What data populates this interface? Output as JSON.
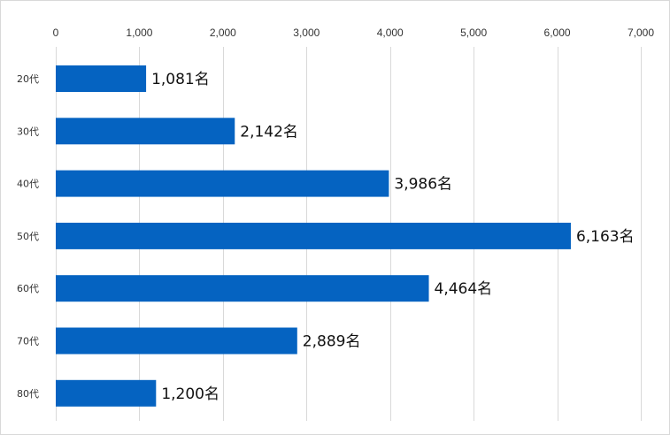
{
  "chart_data": {
    "type": "bar",
    "orientation": "horizontal",
    "title": "",
    "xlabel": "",
    "ylabel": "",
    "categories": [
      "20代",
      "30代",
      "40代",
      "50代",
      "60代",
      "70代",
      "80代"
    ],
    "values": [
      1081,
      2142,
      3986,
      6163,
      4464,
      2889,
      1200
    ],
    "data_labels": [
      "1,081名",
      "2,142名",
      "3,986名",
      "6,163名",
      "4,464名",
      "2,889名",
      "1,200名"
    ],
    "xlim": [
      0,
      7000
    ],
    "x_ticks": [
      0,
      1000,
      2000,
      3000,
      4000,
      5000,
      6000,
      7000
    ],
    "x_tick_labels": [
      "0",
      "1,000",
      "2,000",
      "3,000",
      "4,000",
      "5,000",
      "6,000",
      "7,000"
    ],
    "axis_position": "top",
    "grid": true,
    "legend": "none",
    "bar_color": "#0563C1",
    "grid_color": "#D9D9D9"
  }
}
